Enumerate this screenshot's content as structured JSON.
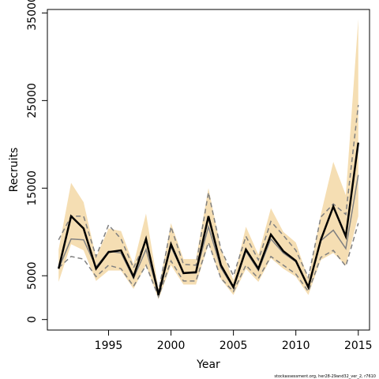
{
  "chart_data": {
    "type": "line",
    "x_label": "Year",
    "y_label": "Recruits",
    "footer": "stockassessment.org, her28-29and32_ver_2, r7610",
    "x": [
      1991,
      1992,
      1993,
      1994,
      1995,
      1996,
      1997,
      1998,
      1999,
      2000,
      2001,
      2002,
      2003,
      2004,
      2005,
      2006,
      2007,
      2008,
      2009,
      2010,
      2011,
      2012,
      2013,
      2014,
      2015
    ],
    "xlim": [
      1990.1,
      2015.9
    ],
    "xticks": [
      1995,
      2000,
      2005,
      2010,
      2015
    ],
    "ylim": [
      -1200,
      35400
    ],
    "yticks": [
      0,
      5000,
      15000,
      25000,
      35000
    ],
    "band": {
      "color": "#f5deb3",
      "upper": [
        8000,
        15600,
        13400,
        7100,
        10400,
        10100,
        6300,
        12100,
        3500,
        11000,
        6900,
        6900,
        15000,
        8100,
        4500,
        10600,
        7400,
        12700,
        10000,
        8800,
        4600,
        12000,
        18000,
        14200,
        34300
      ],
      "lower": [
        4300,
        8600,
        7900,
        4400,
        5600,
        5600,
        3500,
        6200,
        2300,
        6200,
        4000,
        4000,
        8600,
        4600,
        2800,
        5800,
        4300,
        7000,
        5800,
        4900,
        2800,
        6800,
        7600,
        6200,
        11800
      ]
    },
    "series": [
      {
        "color": "#808080",
        "dashed": true,
        "width": 1.5,
        "values": [
          9100,
          11800,
          11800,
          7200,
          10800,
          9200,
          5900,
          9000,
          3200,
          10600,
          6300,
          6200,
          14500,
          8000,
          5000,
          9500,
          6800,
          11200,
          9600,
          7900,
          4800,
          11700,
          13200,
          12000,
          24500
        ]
      },
      {
        "color": "#808080",
        "dashed": true,
        "width": 1.5,
        "values": [
          5900,
          7200,
          6900,
          4900,
          6200,
          5800,
          3800,
          6200,
          2600,
          6700,
          4400,
          4400,
          8800,
          4700,
          3200,
          6200,
          4700,
          7200,
          6200,
          5200,
          3200,
          7100,
          7900,
          6100,
          11000
        ]
      },
      {
        "color": "#808080",
        "dashed": false,
        "width": 1.5,
        "values": [
          5800,
          9200,
          9100,
          6000,
          7800,
          7600,
          4700,
          8000,
          2900,
          8300,
          5300,
          5300,
          10600,
          5900,
          3600,
          7800,
          5600,
          9200,
          7600,
          6600,
          3600,
          9000,
          10200,
          8100,
          16500
        ]
      },
      {
        "color": "#000000",
        "dashed": false,
        "width": 2.5,
        "values": [
          5800,
          11800,
          10400,
          5800,
          7700,
          7900,
          4900,
          9200,
          2800,
          8600,
          5300,
          5400,
          11800,
          6200,
          3700,
          8000,
          5800,
          9700,
          7800,
          6700,
          3700,
          9100,
          12900,
          9500,
          20200
        ]
      }
    ]
  }
}
